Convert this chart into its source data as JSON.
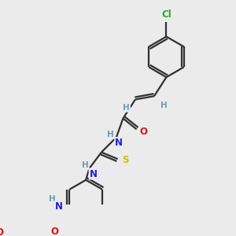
{
  "background_color": "#ebebeb",
  "atom_colors": {
    "C": "#303030",
    "H": "#6a9fad",
    "N": "#2020e0",
    "O": "#e01010",
    "S": "#c8c800",
    "Cl": "#20b020"
  },
  "bond_color": "#303030",
  "bond_width": 1.6,
  "font_size_atom": 8.5,
  "font_size_h": 7.5,
  "font_size_cl": 8.5
}
